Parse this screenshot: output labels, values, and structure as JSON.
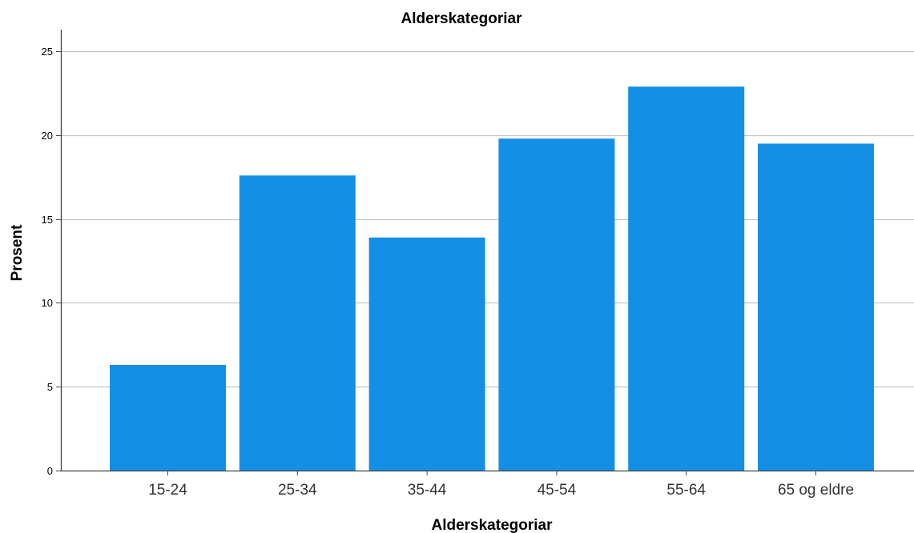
{
  "chart_data": {
    "type": "bar",
    "title": "Alderskategoriar",
    "xlabel": "Alderskategoriar",
    "ylabel": "Prosent",
    "categories": [
      "15-24",
      "25-34",
      "35-44",
      "45-54",
      "55-64",
      "65 og eldre"
    ],
    "values": [
      6.3,
      17.6,
      13.9,
      19.8,
      22.9,
      19.5
    ],
    "yticks": [
      0,
      5,
      10,
      15,
      20,
      25
    ],
    "ylim": [
      0,
      26.3
    ],
    "grid": "horizontal",
    "bar_color": "#1390e6",
    "grid_color": "#c4c4c4",
    "axis_color": "#444444"
  }
}
